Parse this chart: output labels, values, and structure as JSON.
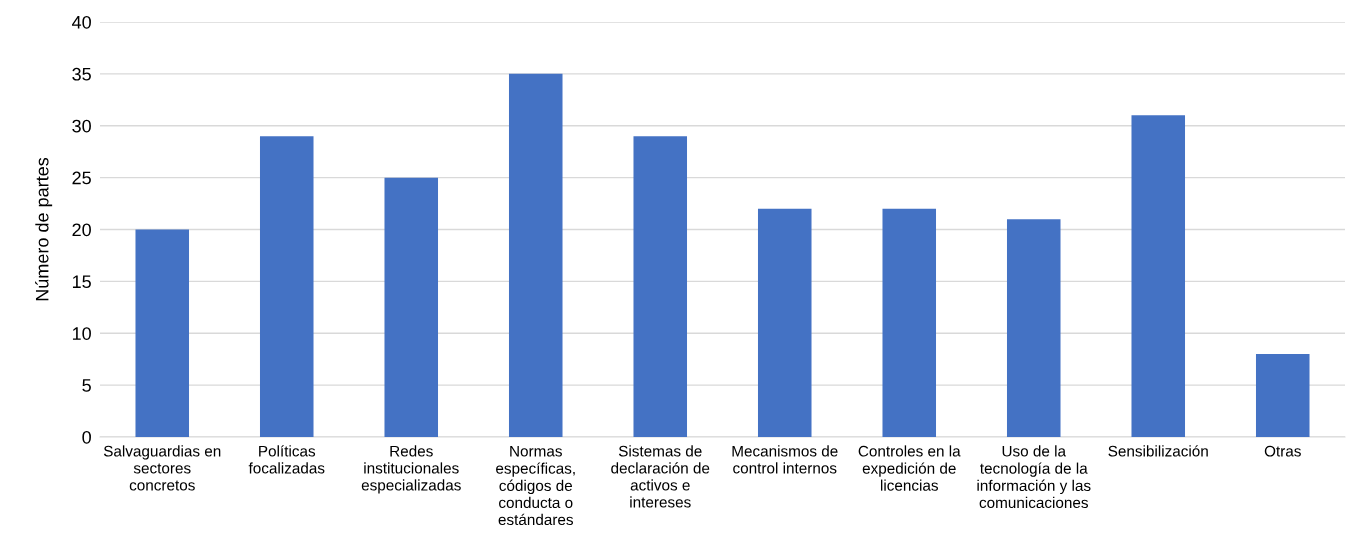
{
  "chart_data": {
    "type": "bar",
    "ylabel": "Número de partes",
    "categories": [
      "Salvaguardias en\nsectores\nconcretos",
      "Políticas\nfocalizadas",
      "Redes\ninstitucionales\nespecializadas",
      "Normas\nespecíficas,\ncódigos de\nconducta o\nestándares",
      "Sistemas de\ndeclaración de\nactivos e\nintereses",
      "Mecanismos de\ncontrol internos",
      "Controles en la\nexpedición de\nlicencias",
      "Uso de la\ntecnología de la\ninformación y las\ncomunicaciones",
      "Sensibilización",
      "Otras"
    ],
    "values": [
      20,
      29,
      25,
      35,
      29,
      22,
      22,
      21,
      31,
      8
    ],
    "color": "#4472c4",
    "ylim": [
      0,
      40
    ],
    "yticks": [
      0,
      5,
      10,
      15,
      20,
      25,
      30,
      35,
      40
    ],
    "grid": "y"
  }
}
